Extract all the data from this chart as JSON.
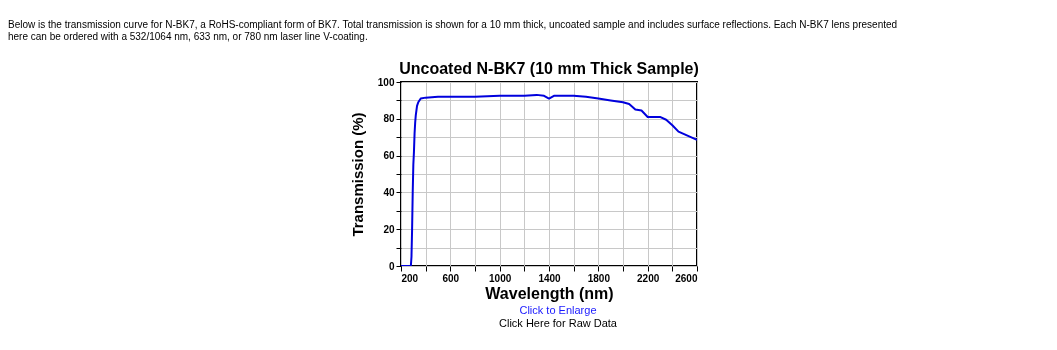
{
  "chart_data": {
    "type": "line",
    "title": "Uncoated N-BK7 (10 mm Thick Sample)",
    "xlabel": "Wavelength (nm)",
    "ylabel": "Transmission (%)",
    "annotations": [
      "Below is the transmission curve for N-BK7, a RoHS-compliant form of BK7. Total transmission is shown for a 10 mm thick, uncoated sample and includes surface reflections. Each N-BK7 lens presented here can be ordered with a 532/1064 nm, 633 nm, or 780 nm laser line V-coating.",
      "Click to Enlarge",
      "Click Here for Raw Data"
    ],
    "x": [
      200,
      280,
      285,
      290,
      295,
      300,
      305,
      310,
      315,
      320,
      330,
      340,
      360,
      400,
      500,
      800,
      1000,
      1200,
      1300,
      1360,
      1400,
      1440,
      1600,
      1700,
      1800,
      1900,
      2000,
      2050,
      2100,
      2150,
      2200,
      2250,
      2300,
      2350,
      2400,
      2450,
      2500,
      2550,
      2600
    ],
    "series": [
      {
        "color": "#0000dd",
        "values": [
          0,
          0,
          5,
          20,
          40,
          55,
          62,
          72,
          78,
          82,
          87,
          89,
          91,
          91.5,
          92,
          92,
          92.5,
          92.5,
          93,
          92.5,
          91,
          92.5,
          92.5,
          92,
          91,
          90,
          89,
          88,
          85,
          84.5,
          81,
          81,
          81,
          79.5,
          76.5,
          73,
          71.5,
          70,
          68.5
        ]
      }
    ],
    "xlim": [
      200,
      2600
    ],
    "ylim": [
      0,
      100
    ],
    "xticks": [
      200,
      {
        "value": 400,
        "label": null
      },
      600,
      {
        "value": 800,
        "label": null
      },
      1000,
      {
        "value": 1200,
        "label": null
      },
      1400,
      {
        "value": 1600,
        "label": null
      },
      1800,
      {
        "value": 2000,
        "label": null
      },
      2200,
      {
        "value": 2400,
        "label": null
      },
      2600
    ],
    "yticks": [
      0,
      {
        "value": 10,
        "label": null
      },
      20,
      {
        "value": 30,
        "label": null
      },
      40,
      {
        "value": 50,
        "label": null
      },
      60,
      {
        "value": 70,
        "label": null
      },
      80,
      {
        "value": 90,
        "label": null
      },
      100
    ],
    "grid": true,
    "marker": "none",
    "line_style": "solid"
  }
}
